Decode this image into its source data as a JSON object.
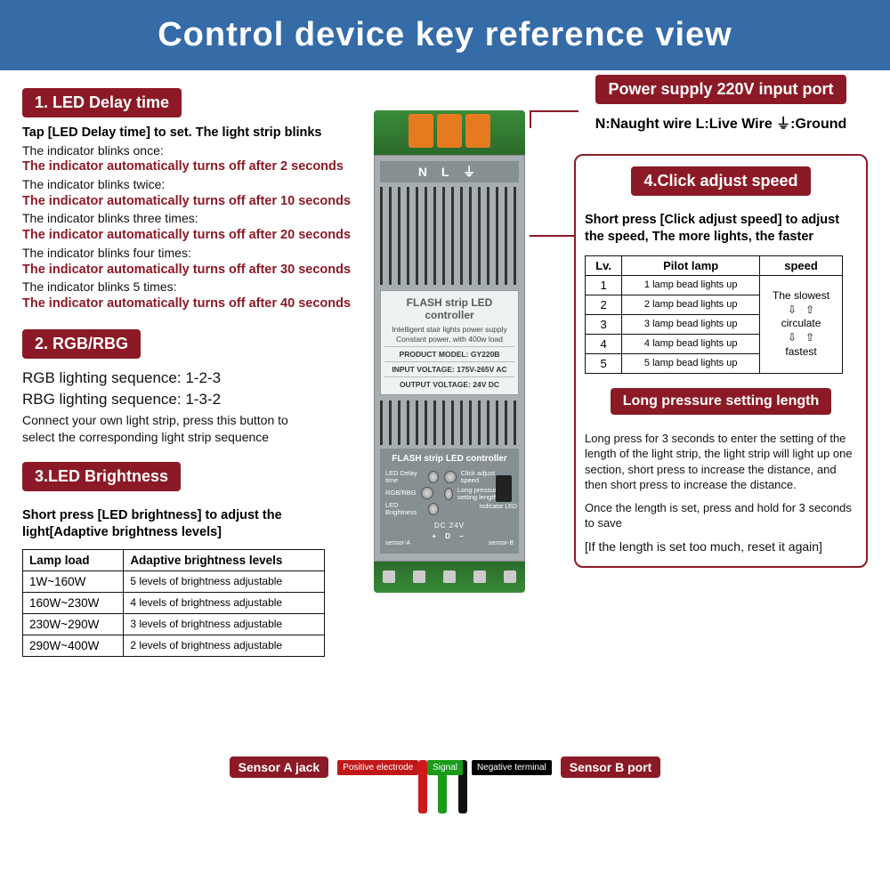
{
  "header": {
    "title": "Control device key reference view"
  },
  "colors": {
    "header_bg": "#356ba7",
    "badge_bg": "#8b1a26",
    "accent": "#8b1a26",
    "terminal_orange": "#e67a1f"
  },
  "power": {
    "label": "Power supply 220V input port",
    "legend": "N:Naught wire  L:Live Wire  ⏚:Ground"
  },
  "sec1": {
    "title": "1. LED Delay time",
    "intro": "Tap [LED Delay time] to set. The light strip blinks",
    "rows": [
      {
        "a": "The indicator blinks once:",
        "b": "The indicator automatically turns off after 2 seconds"
      },
      {
        "a": "The indicator blinks twice:",
        "b": "The indicator automatically turns off after 10 seconds"
      },
      {
        "a": "The indicator blinks three times:",
        "b": "The indicator automatically turns off after 20 seconds"
      },
      {
        "a": "The indicator blinks four times:",
        "b": "The indicator automatically turns off after 30 seconds"
      },
      {
        "a": "The indicator blinks 5 times:",
        "b": "The indicator automatically turns off after 40 seconds"
      }
    ]
  },
  "sec2": {
    "title": "2. RGB/RBG",
    "line1": "RGB lighting sequence: 1-2-3",
    "line2": "RBG lighting sequence: 1-3-2",
    "desc": "Connect your own light strip, press this button to select the corresponding light strip sequence"
  },
  "sec3": {
    "title": "3.LED Brightness",
    "desc": "Short press [LED brightness] to adjust the light[Adaptive brightness levels]",
    "headers": [
      "Lamp load",
      "Adaptive brightness levels"
    ],
    "rows": [
      [
        "1W~160W",
        "5 levels of brightness adjustable"
      ],
      [
        "160W~230W",
        "4 levels of brightness adjustable"
      ],
      [
        "230W~290W",
        "3 levels of brightness adjustable"
      ],
      [
        "290W~400W",
        "2 levels of brightness adjustable"
      ]
    ]
  },
  "sec4": {
    "title": "4.Click adjust speed",
    "desc": "Short press [Click adjust speed] to adjust the speed, The more lights, the faster",
    "headers": [
      "Lv.",
      "Pilot lamp",
      "speed"
    ],
    "rows": [
      [
        "1",
        "1 lamp bead lights up"
      ],
      [
        "2",
        "2 lamp bead lights up"
      ],
      [
        "3",
        "3 lamp bead lights up"
      ],
      [
        "4",
        "4 lamp bead lights up"
      ],
      [
        "5",
        "5 lamp bead lights up"
      ]
    ],
    "speed_top": "The slowest",
    "speed_mid": "circulate",
    "speed_bot": "fastest"
  },
  "sec5": {
    "title": "Long pressure setting length",
    "p1": "Long press for 3 seconds to enter the setting of the length of the light strip, the light strip will light up one section, short press to increase the distance, and then short press to increase the distance.",
    "p2": "Once the length is set, press and hold for 3 seconds to save",
    "p3": "[If the length is set too much, reset it again]"
  },
  "device": {
    "nlg": "N L ⏚",
    "title": "FLASH strip LED controller",
    "sub": "Intelligent stair lights power supply Constant power, with 400w load",
    "model_lbl": "PRODUCT MODEL:",
    "model": "GY220B",
    "inv_lbl": "INPUT VOLTAGE:",
    "inv": "175V-265V AC",
    "outv_lbl": "OUTPUT VOLTAGE:",
    "outv": "24V DC",
    "fsc": "FLASH strip LED controller",
    "b1": "LED Delay time",
    "b2": "RGB/RBG",
    "b3": "LED Brightness",
    "b4": "Click adjust speed",
    "b5": "Long pressure setting length",
    "ind": "Indicator LED",
    "dc": "DC 24V",
    "sa": "sensor-A",
    "sb": "sensor-B",
    "pdt": "+  D  –"
  },
  "bottom": {
    "sa": "Sensor A jack",
    "pos": "Positive electrode",
    "sig": "Signal",
    "neg": "Negative terminal",
    "sb": "Sensor B port"
  }
}
